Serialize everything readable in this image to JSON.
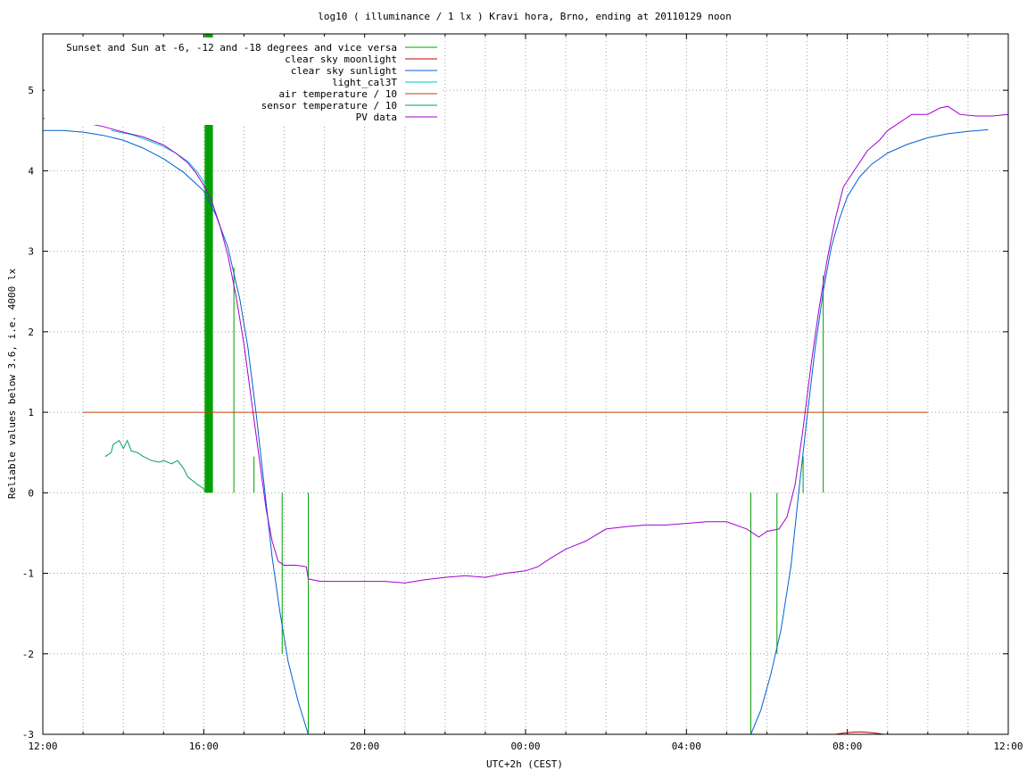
{
  "chart_data": {
    "type": "line",
    "title": "log10 ( illuminance / 1 lx ) Kravi hora, Brno, ending at 20110129 noon",
    "xlabel": "UTC+2h (CEST)",
    "ylabel": "Reliable values below 3.6, i.e. 4000 lx",
    "xlim": [
      0,
      24
    ],
    "ylim": [
      -3,
      5.7
    ],
    "grid": true,
    "legend_position": "top-left",
    "x_ticks": [
      {
        "x": 0,
        "label": "12:00"
      },
      {
        "x": 4,
        "label": "16:00"
      },
      {
        "x": 8,
        "label": "20:00"
      },
      {
        "x": 12,
        "label": "00:00"
      },
      {
        "x": 16,
        "label": "04:00"
      },
      {
        "x": 20,
        "label": "08:00"
      },
      {
        "x": 24,
        "label": "12:00"
      }
    ],
    "x_minor_step": 1,
    "y_ticks": [
      {
        "y": 5,
        "label": "5"
      },
      {
        "y": 4,
        "label": "4"
      },
      {
        "y": 3,
        "label": "3"
      },
      {
        "y": 2,
        "label": "2"
      },
      {
        "y": 1,
        "label": "1"
      },
      {
        "y": 0,
        "label": "0"
      },
      {
        "y": -1,
        "label": "-1"
      },
      {
        "y": -2,
        "label": "-2"
      },
      {
        "y": -3,
        "label": "-3"
      }
    ],
    "series": [
      {
        "name": "Sunset and Sun at -6, -12 and -18 degrees and vice versa",
        "color": "#00a000",
        "style": "impulses",
        "points": [
          [
            4.05,
            5.7
          ],
          [
            4.1,
            5.7
          ],
          [
            4.15,
            5.7
          ],
          [
            4.2,
            5.7
          ],
          [
            4.75,
            2.8
          ],
          [
            5.25,
            0.45
          ],
          [
            5.95,
            -2.0
          ],
          [
            6.6,
            -3.0
          ],
          [
            17.6,
            -3.0
          ],
          [
            18.25,
            -2.0
          ],
          [
            18.9,
            0.45
          ],
          [
            19.4,
            2.7
          ]
        ]
      },
      {
        "name": "clear sky moonlight",
        "color": "#c00000",
        "style": "line",
        "points": [
          [
            19.7,
            -3.0
          ],
          [
            19.9,
            -2.985
          ],
          [
            20.1,
            -2.975
          ],
          [
            20.3,
            -2.97
          ],
          [
            20.5,
            -2.975
          ],
          [
            20.7,
            -2.985
          ],
          [
            20.9,
            -3.0
          ]
        ]
      },
      {
        "name": "clear sky sunlight",
        "color": "#0060d0",
        "style": "line",
        "points": [
          [
            0,
            4.5
          ],
          [
            0.5,
            4.5
          ],
          [
            1.0,
            4.48
          ],
          [
            1.5,
            4.44
          ],
          [
            2.0,
            4.38
          ],
          [
            2.5,
            4.28
          ],
          [
            3.0,
            4.15
          ],
          [
            3.5,
            3.98
          ],
          [
            4.0,
            3.75
          ],
          [
            4.3,
            3.45
          ],
          [
            4.6,
            3.05
          ],
          [
            4.9,
            2.4
          ],
          [
            5.1,
            1.8
          ],
          [
            5.3,
            1.0
          ],
          [
            5.5,
            0.1
          ],
          [
            5.7,
            -0.8
          ],
          [
            5.9,
            -1.5
          ],
          [
            6.1,
            -2.1
          ],
          [
            6.35,
            -2.6
          ],
          [
            6.6,
            -3.0
          ],
          [
            17.6,
            -3.0
          ],
          [
            17.85,
            -2.7
          ],
          [
            18.1,
            -2.25
          ],
          [
            18.35,
            -1.7
          ],
          [
            18.6,
            -0.9
          ],
          [
            18.8,
            0.05
          ],
          [
            19.0,
            0.95
          ],
          [
            19.2,
            1.8
          ],
          [
            19.4,
            2.5
          ],
          [
            19.6,
            3.05
          ],
          [
            19.8,
            3.4
          ],
          [
            20.0,
            3.68
          ],
          [
            20.3,
            3.92
          ],
          [
            20.6,
            4.08
          ],
          [
            21.0,
            4.22
          ],
          [
            21.5,
            4.33
          ],
          [
            22.0,
            4.41
          ],
          [
            22.5,
            4.46
          ],
          [
            23.0,
            4.49
          ],
          [
            23.5,
            4.51
          ]
        ]
      },
      {
        "name": "light_cal3T",
        "color": "#00c8c8",
        "style": "line",
        "points": [
          [
            1.7,
            4.5
          ],
          [
            2.2,
            4.45
          ],
          [
            2.6,
            4.38
          ],
          [
            3.0,
            4.3
          ],
          [
            3.3,
            4.22
          ],
          [
            3.6,
            4.12
          ],
          [
            3.85,
            3.98
          ],
          [
            4.0,
            3.86
          ],
          [
            4.05,
            3.82
          ]
        ]
      },
      {
        "name": "air temperature / 10",
        "color": "#c84000",
        "style": "line",
        "points": [
          [
            1.0,
            1.0
          ],
          [
            22.0,
            1.0
          ]
        ]
      },
      {
        "name": "sensor temperature / 10",
        "color": "#00a060",
        "style": "line",
        "points": [
          [
            1.55,
            0.45
          ],
          [
            1.7,
            0.5
          ],
          [
            1.75,
            0.6
          ],
          [
            1.9,
            0.65
          ],
          [
            2.0,
            0.55
          ],
          [
            2.1,
            0.65
          ],
          [
            2.2,
            0.52
          ],
          [
            2.35,
            0.5
          ],
          [
            2.5,
            0.45
          ],
          [
            2.7,
            0.4
          ],
          [
            2.9,
            0.38
          ],
          [
            3.0,
            0.4
          ],
          [
            3.2,
            0.36
          ],
          [
            3.35,
            0.4
          ],
          [
            3.5,
            0.3
          ],
          [
            3.6,
            0.2
          ],
          [
            3.8,
            0.12
          ],
          [
            4.0,
            0.05
          ],
          [
            4.05,
            0.0
          ]
        ]
      },
      {
        "name": "PV data",
        "color": "#a000d0",
        "style": "line",
        "points": [
          [
            0,
            4.65
          ],
          [
            0.5,
            4.63
          ],
          [
            1.0,
            4.6
          ],
          [
            1.5,
            4.55
          ],
          [
            2.0,
            4.48
          ],
          [
            2.5,
            4.42
          ],
          [
            3.0,
            4.32
          ],
          [
            3.3,
            4.22
          ],
          [
            3.6,
            4.1
          ],
          [
            3.8,
            3.98
          ],
          [
            4.0,
            3.82
          ],
          [
            4.2,
            3.62
          ],
          [
            4.4,
            3.32
          ],
          [
            4.6,
            2.95
          ],
          [
            4.8,
            2.45
          ],
          [
            5.0,
            1.85
          ],
          [
            5.2,
            1.1
          ],
          [
            5.4,
            0.35
          ],
          [
            5.55,
            -0.2
          ],
          [
            5.7,
            -0.6
          ],
          [
            5.85,
            -0.85
          ],
          [
            6.0,
            -0.9
          ],
          [
            6.3,
            -0.9
          ],
          [
            6.55,
            -0.92
          ],
          [
            6.6,
            -1.07
          ],
          [
            6.9,
            -1.1
          ],
          [
            7.5,
            -1.1
          ],
          [
            8.0,
            -1.1
          ],
          [
            8.5,
            -1.1
          ],
          [
            9.0,
            -1.12
          ],
          [
            9.5,
            -1.08
          ],
          [
            10.0,
            -1.05
          ],
          [
            10.5,
            -1.03
          ],
          [
            11.0,
            -1.05
          ],
          [
            11.5,
            -1.0
          ],
          [
            12.0,
            -0.97
          ],
          [
            12.3,
            -0.92
          ],
          [
            12.6,
            -0.82
          ],
          [
            13.0,
            -0.7
          ],
          [
            13.5,
            -0.6
          ],
          [
            14.0,
            -0.45
          ],
          [
            14.5,
            -0.42
          ],
          [
            15.0,
            -0.4
          ],
          [
            15.5,
            -0.4
          ],
          [
            16.0,
            -0.38
          ],
          [
            16.5,
            -0.36
          ],
          [
            17.0,
            -0.36
          ],
          [
            17.5,
            -0.45
          ],
          [
            17.8,
            -0.55
          ],
          [
            18.0,
            -0.48
          ],
          [
            18.3,
            -0.45
          ],
          [
            18.5,
            -0.3
          ],
          [
            18.7,
            0.1
          ],
          [
            18.9,
            0.8
          ],
          [
            19.1,
            1.6
          ],
          [
            19.3,
            2.3
          ],
          [
            19.5,
            2.9
          ],
          [
            19.7,
            3.4
          ],
          [
            19.9,
            3.8
          ],
          [
            20.1,
            3.95
          ],
          [
            20.3,
            4.1
          ],
          [
            20.5,
            4.25
          ],
          [
            20.8,
            4.38
          ],
          [
            21.0,
            4.5
          ],
          [
            21.3,
            4.6
          ],
          [
            21.6,
            4.7
          ],
          [
            22.0,
            4.7
          ],
          [
            22.3,
            4.78
          ],
          [
            22.5,
            4.8
          ],
          [
            22.8,
            4.7
          ],
          [
            23.2,
            4.68
          ],
          [
            23.6,
            4.68
          ],
          [
            24.0,
            4.7
          ]
        ]
      }
    ]
  }
}
